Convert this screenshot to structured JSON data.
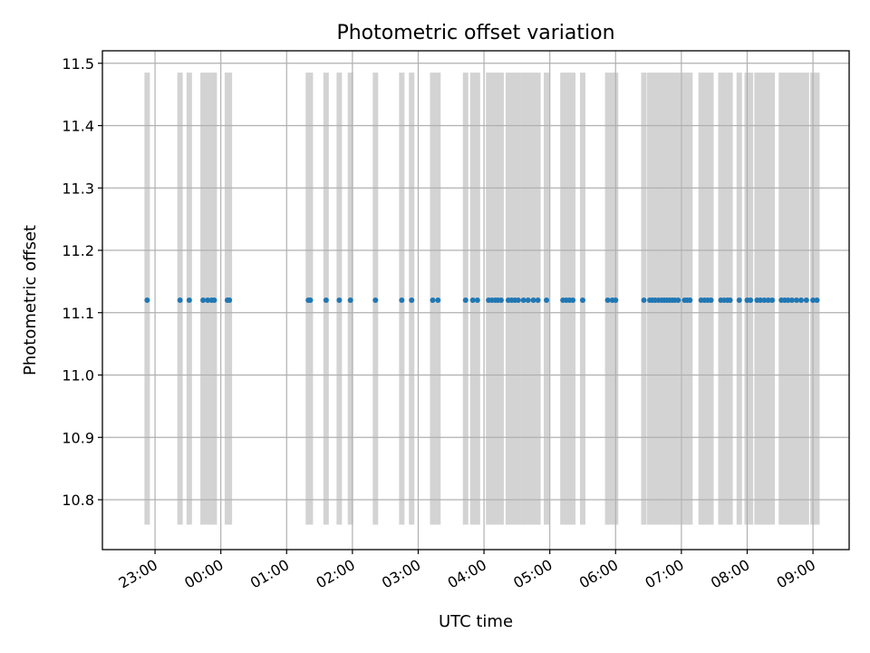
{
  "chart_data": {
    "type": "scatter",
    "title": "Photometric offset variation",
    "xlabel": "UTC time",
    "ylabel": "Photometric offset",
    "xlim_hours": [
      22.2,
      33.55
    ],
    "ylim": [
      10.72,
      11.52
    ],
    "yticks": [
      10.8,
      10.9,
      11.0,
      11.1,
      11.2,
      11.3,
      11.4,
      11.5
    ],
    "xticks": [
      {
        "label": "23:00",
        "hour": 23
      },
      {
        "label": "00:00",
        "hour": 24
      },
      {
        "label": "01:00",
        "hour": 25
      },
      {
        "label": "02:00",
        "hour": 26
      },
      {
        "label": "03:00",
        "hour": 27
      },
      {
        "label": "04:00",
        "hour": 28
      },
      {
        "label": "05:00",
        "hour": 29
      },
      {
        "label": "06:00",
        "hour": 30
      },
      {
        "label": "07:00",
        "hour": 31
      },
      {
        "label": "08:00",
        "hour": 32
      },
      {
        "label": "09:00",
        "hour": 33
      }
    ],
    "grid": true,
    "band_range": [
      10.76,
      11.485
    ],
    "band_color": "#d3d3d3",
    "marker_color": "#1f77b4",
    "y_value": 11.12,
    "x_hours": [
      22.88,
      23.38,
      23.52,
      23.73,
      23.8,
      23.86,
      23.9,
      24.1,
      24.13,
      25.33,
      25.36,
      25.6,
      25.8,
      25.97,
      26.35,
      26.75,
      26.9,
      27.22,
      27.3,
      27.72,
      27.83,
      27.9,
      28.07,
      28.12,
      28.17,
      28.21,
      28.26,
      28.37,
      28.42,
      28.47,
      28.52,
      28.6,
      28.67,
      28.75,
      28.82,
      28.95,
      29.2,
      29.25,
      29.3,
      29.35,
      29.5,
      29.88,
      29.95,
      30.0,
      30.43,
      30.52,
      30.56,
      30.6,
      30.65,
      30.7,
      30.74,
      30.78,
      30.82,
      30.86,
      30.9,
      30.95,
      31.05,
      31.09,
      31.13,
      31.3,
      31.35,
      31.4,
      31.45,
      31.6,
      31.65,
      31.7,
      31.74,
      31.88,
      32.0,
      32.05,
      32.15,
      32.2,
      32.26,
      32.32,
      32.38,
      32.52,
      32.57,
      32.62,
      32.68,
      32.75,
      32.82,
      32.9,
      33.0,
      33.06
    ]
  }
}
